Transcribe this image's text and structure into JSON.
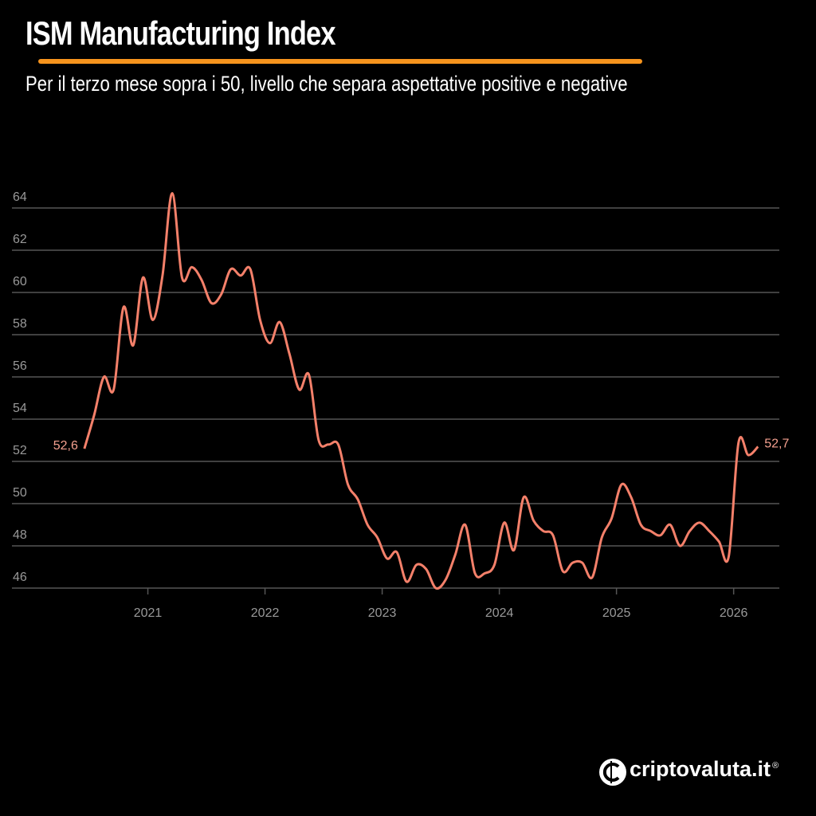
{
  "title": "ISM Manufacturing Index",
  "subtitle": "Per il terzo mese sopra i 50, livello che separa aspettative positive e negative",
  "brand": "criptovaluta.it",
  "brand_mark": "®",
  "chart_data": {
    "type": "line",
    "x": [
      2020.458,
      2020.542,
      2020.625,
      2020.708,
      2020.792,
      2020.875,
      2020.958,
      2021.042,
      2021.125,
      2021.208,
      2021.292,
      2021.375,
      2021.458,
      2021.542,
      2021.625,
      2021.708,
      2021.792,
      2021.875,
      2021.958,
      2022.042,
      2022.125,
      2022.208,
      2022.292,
      2022.375,
      2022.458,
      2022.542,
      2022.625,
      2022.708,
      2022.792,
      2022.875,
      2022.958,
      2023.042,
      2023.125,
      2023.208,
      2023.292,
      2023.375,
      2023.458,
      2023.542,
      2023.625,
      2023.708,
      2023.792,
      2023.875,
      2023.958,
      2024.042,
      2024.125,
      2024.208,
      2024.292,
      2024.375,
      2024.458,
      2024.542,
      2024.625,
      2024.708,
      2024.792,
      2024.875,
      2024.958,
      2025.042,
      2025.125,
      2025.208,
      2025.292,
      2025.375,
      2025.458,
      2025.542,
      2025.625,
      2025.708,
      2025.792,
      2025.875,
      2025.958,
      2026.042,
      2026.125,
      2026.208
    ],
    "series": [
      {
        "name": "ISM Manufacturing Index",
        "color": "#f4806a",
        "values": [
          52.6,
          54.2,
          56.0,
          55.4,
          59.3,
          57.5,
          60.7,
          58.7,
          60.8,
          64.7,
          60.7,
          61.2,
          60.6,
          59.5,
          59.9,
          61.1,
          60.8,
          61.1,
          58.7,
          57.6,
          58.6,
          57.1,
          55.4,
          56.1,
          53.0,
          52.8,
          52.8,
          50.9,
          50.2,
          49.0,
          48.4,
          47.4,
          47.7,
          46.3,
          47.1,
          46.9,
          46.0,
          46.4,
          47.6,
          49.0,
          46.7,
          46.7,
          47.1,
          49.1,
          47.8,
          50.3,
          49.2,
          48.7,
          48.5,
          46.8,
          47.2,
          47.2,
          46.5,
          48.4,
          49.3,
          50.9,
          50.3,
          49.0,
          48.7,
          48.5,
          49.0,
          48.0,
          48.7,
          49.1,
          48.7,
          48.2,
          47.5,
          52.9,
          52.3,
          52.7
        ],
        "value_labels": [
          "52,6",
          null,
          null,
          null,
          null,
          null,
          null,
          null,
          null,
          null,
          null,
          null,
          null,
          null,
          null,
          null,
          null,
          null,
          null,
          null,
          null,
          null,
          null,
          null,
          null,
          null,
          null,
          null,
          null,
          null,
          null,
          null,
          null,
          null,
          null,
          null,
          null,
          null,
          null,
          null,
          null,
          null,
          null,
          null,
          null,
          null,
          null,
          null,
          null,
          null,
          null,
          null,
          null,
          null,
          null,
          null,
          null,
          null,
          null,
          null,
          null,
          null,
          null,
          null,
          null,
          null,
          null,
          null,
          null,
          "52,7"
        ]
      }
    ],
    "xlim": [
      2019.84,
      2026.39
    ],
    "xticks": [
      2021,
      2022,
      2023,
      2024,
      2025,
      2026
    ],
    "ylim": [
      46,
      64
    ],
    "yticks": [
      46,
      48,
      50,
      52,
      54,
      56,
      58,
      60,
      62,
      64
    ],
    "grid": true,
    "grid_color": "#555555"
  }
}
